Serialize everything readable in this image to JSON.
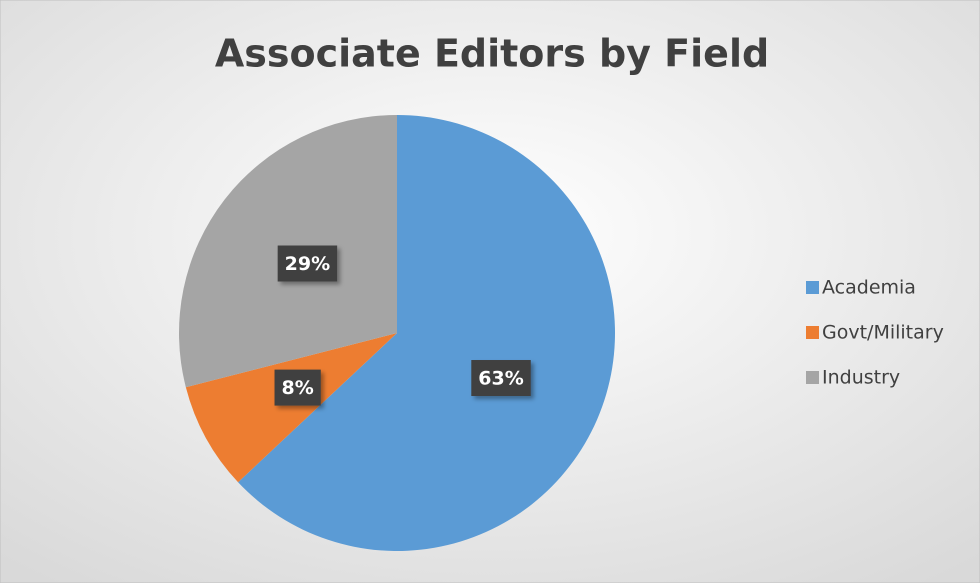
{
  "chart_data": {
    "type": "pie",
    "title": "Associate Editors by Field",
    "categories": [
      "Academia",
      "Govt/Military",
      "Industry"
    ],
    "values": [
      63,
      8,
      29
    ],
    "value_labels": [
      "63%",
      "8%",
      "29%"
    ],
    "colors": [
      "#5b9bd5",
      "#ed7d31",
      "#a5a5a5"
    ],
    "legend": "right"
  }
}
